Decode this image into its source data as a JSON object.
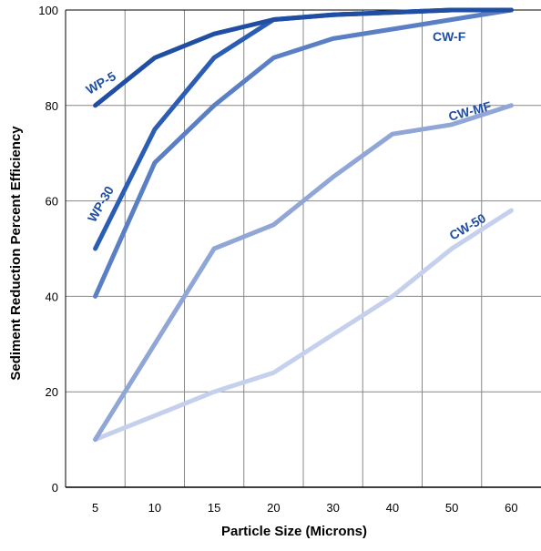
{
  "chart_data": {
    "type": "line",
    "title": "",
    "xlabel": "Particle Size (Microns)",
    "ylabel": "Sediment Reduction Percent Efficiency",
    "categories": [
      "5",
      "10",
      "15",
      "20",
      "30",
      "40",
      "50",
      "60"
    ],
    "ylim": [
      0,
      100
    ],
    "yticks": [
      "0",
      "20",
      "40",
      "60",
      "80",
      "100"
    ],
    "grid": true,
    "legend": "none",
    "series": [
      {
        "name": "WP-5",
        "color": "#1f4ea3",
        "values": [
          80,
          90,
          95,
          98,
          99,
          99.5,
          100,
          100
        ]
      },
      {
        "name": "WP-30",
        "color": "#2b5db5",
        "values": [
          50,
          75,
          90,
          98,
          99,
          99.5,
          100,
          100
        ]
      },
      {
        "name": "CW-F",
        "color": "#5b7fc4",
        "values": [
          40,
          68,
          80,
          90,
          94,
          96,
          98,
          100
        ]
      },
      {
        "name": "CW-MF",
        "color": "#8fa6d6",
        "values": [
          10,
          30,
          50,
          55,
          65,
          74,
          76,
          80
        ]
      },
      {
        "name": "CW-50",
        "color": "#c4d0ec",
        "values": [
          10,
          15,
          20,
          24,
          32,
          40,
          50,
          58
        ]
      }
    ]
  }
}
